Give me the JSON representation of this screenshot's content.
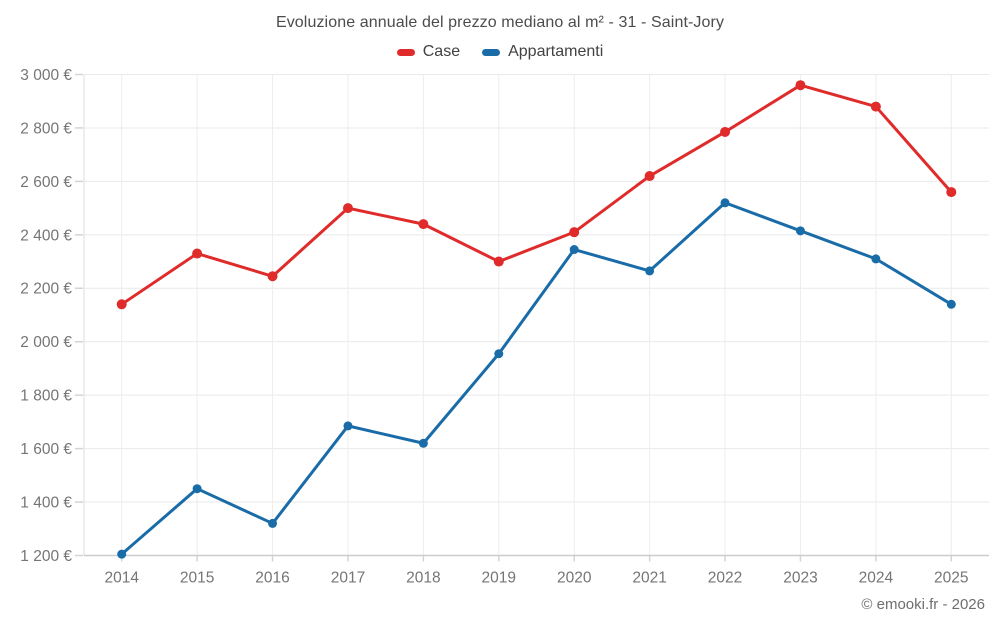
{
  "title": "Evoluzione annuale del prezzo mediano al m² - 31 - Saint-Jory",
  "copyright": "© emooki.fr - 2026",
  "chart_data": {
    "type": "line",
    "title": "Evoluzione annuale del prezzo mediano al m² - 31 - Saint-Jory",
    "categories": [
      "2014",
      "2015",
      "2016",
      "2017",
      "2018",
      "2019",
      "2020",
      "2021",
      "2022",
      "2023",
      "2024",
      "2025"
    ],
    "series": [
      {
        "name": "Case",
        "color": "#e02b2b",
        "marker_radius": 5,
        "values": [
          2140,
          2330,
          2245,
          2500,
          2440,
          2300,
          2410,
          2620,
          2785,
          2960,
          2880,
          2560
        ]
      },
      {
        "name": "Appartamenti",
        "color": "#1a6ca8",
        "marker_radius": 4.5,
        "values": [
          1205,
          1450,
          1320,
          1685,
          1620,
          1955,
          2345,
          2265,
          2520,
          2415,
          2310,
          2140
        ]
      }
    ],
    "xlabel": "",
    "ylabel": "",
    "ylim": [
      1200,
      3000
    ],
    "ytick_values": [
      1200,
      1400,
      1600,
      1800,
      2000,
      2200,
      2400,
      2600,
      2800,
      3000
    ],
    "ytick_labels": [
      "1 200 €",
      "1 400 €",
      "1 600 €",
      "1 800 €",
      "2 000 €",
      "2 200 €",
      "2 400 €",
      "2 600 €",
      "2 800 €",
      "3 000 €"
    ],
    "grid": true,
    "legend_position": "top"
  },
  "style": {
    "grid_color_h": "#e9e9e9",
    "grid_color_v": "#ededed",
    "axis_color": "#cccccc",
    "left_axis_color": "#dcdcdc",
    "tick_color": "#d4d4d4",
    "tick_label_color": "#757575"
  }
}
